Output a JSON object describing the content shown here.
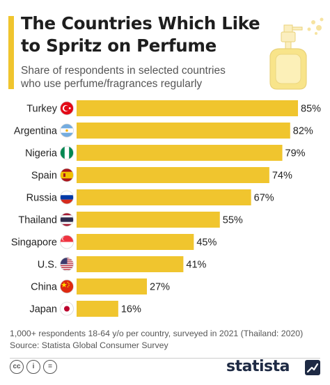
{
  "header": {
    "title_line1": "The Countries Which Like",
    "title_line2": "to Spritz on Perfume",
    "subtitle_line1": "Share of respondents in selected countries",
    "subtitle_line2": "who use perfume/fragrances regularly"
  },
  "chart_data": {
    "type": "bar",
    "orientation": "horizontal",
    "title": "The Countries Which Like to Spritz on Perfume",
    "subtitle": "Share of respondents in selected countries who use perfume/fragrances regularly",
    "categories": [
      "Turkey",
      "Argentina",
      "Nigeria",
      "Spain",
      "Russia",
      "Thailand",
      "Singapore",
      "U.S.",
      "China",
      "Japan"
    ],
    "values": [
      85,
      82,
      79,
      74,
      67,
      55,
      45,
      41,
      27,
      16
    ],
    "value_labels": [
      "85%",
      "82%",
      "79%",
      "74%",
      "67%",
      "55%",
      "45%",
      "41%",
      "27%",
      "16%"
    ],
    "flags": [
      "turkey-flag-icon",
      "argentina-flag-icon",
      "nigeria-flag-icon",
      "spain-flag-icon",
      "russia-flag-icon",
      "thailand-flag-icon",
      "singapore-flag-icon",
      "us-flag-icon",
      "china-flag-icon",
      "japan-flag-icon"
    ],
    "xlim": [
      0,
      85
    ],
    "grid": false,
    "bar_color": "#f0c52e"
  },
  "notes": {
    "line1": "1,000+ respondents 18-64 y/o per country, surveyed in 2021 (Thailand: 2020)",
    "line2": "Source: Statista Global Consumer Survey"
  },
  "footer": {
    "license_icons": [
      "cc-icon",
      "attribution-icon",
      "no-derivatives-icon"
    ],
    "license_text": [
      "cc",
      "i",
      "="
    ],
    "brand": "statista"
  },
  "colors": {
    "accent": "#f0c52e",
    "text": "#1e1e1e",
    "brand": "#1e2a44"
  }
}
